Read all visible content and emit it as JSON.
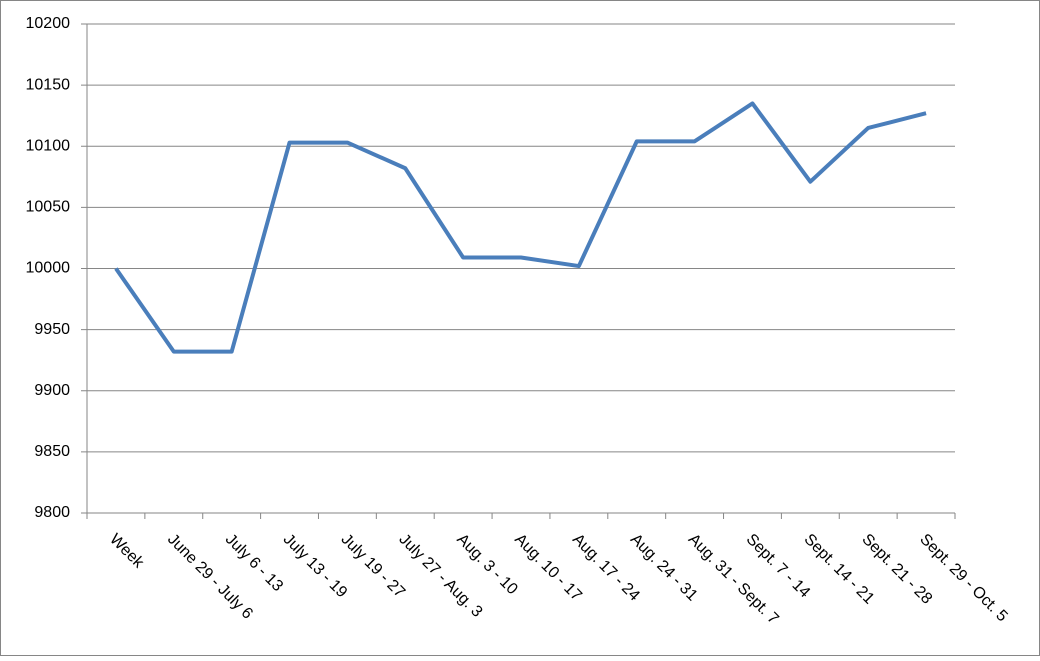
{
  "chart_data": {
    "type": "line",
    "categories": [
      "Week",
      "June 29 - July 6",
      "July 6 - 13",
      "July 13 - 19",
      "July 19 - 27",
      "July 27 - Aug. 3",
      "Aug. 3 - 10",
      "Aug. 10 - 17",
      "Aug. 17 - 24",
      "Aug. 24 - 31",
      "Aug. 31 - Sept. 7",
      "Sept. 7 - 14",
      "Sept. 14 - 21",
      "Sept. 21 - 28",
      "Sept. 29 - Oct. 5"
    ],
    "values": [
      10000,
      9932,
      9932,
      10103,
      10103,
      10082,
      10009,
      10009,
      10002,
      10104,
      10104,
      10135,
      10071,
      10115,
      10127
    ],
    "color": "#4a7ebb",
    "ylim": [
      9800,
      10200
    ],
    "yticks": [
      9800,
      9850,
      9900,
      9950,
      10000,
      10050,
      10100,
      10150,
      10200
    ],
    "grid": true
  }
}
